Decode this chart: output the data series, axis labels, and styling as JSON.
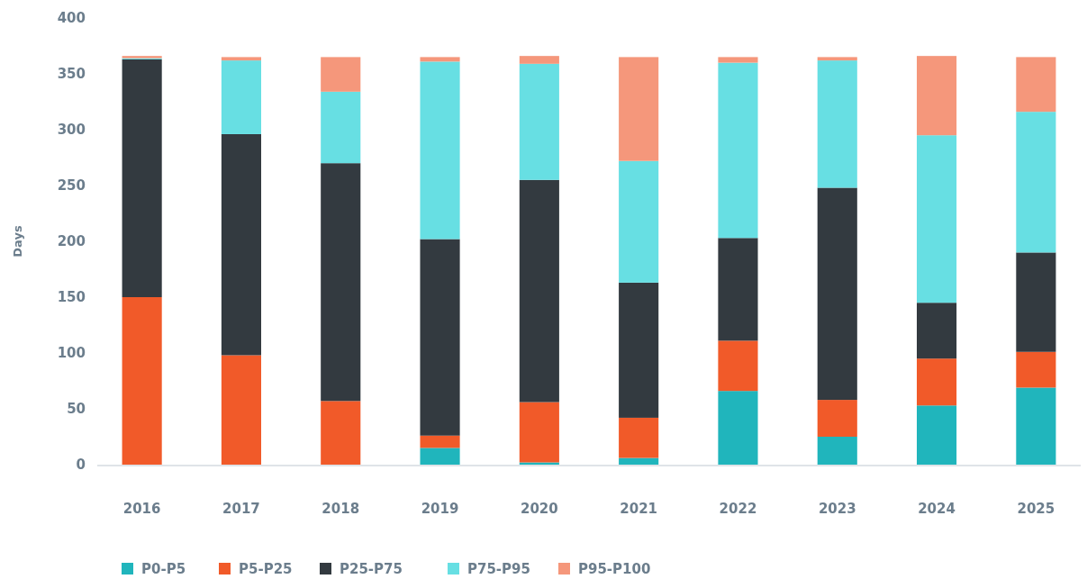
{
  "chart_data": {
    "type": "bar",
    "stacked": true,
    "ylabel": "Days",
    "categories": [
      "2016",
      "2017",
      "2018",
      "2019",
      "2020",
      "2021",
      "2022",
      "2023",
      "2024",
      "2025"
    ],
    "series": [
      {
        "name": "P0-P5",
        "color": "#20b5bc",
        "values": [
          0,
          0,
          0,
          15,
          2,
          6,
          66,
          25,
          53,
          69
        ]
      },
      {
        "name": "P5-P25",
        "color": "#f15a29",
        "values": [
          150,
          98,
          57,
          11,
          54,
          36,
          45,
          33,
          42,
          32
        ]
      },
      {
        "name": "P25-P75",
        "color": "#333a40",
        "values": [
          213,
          198,
          213,
          176,
          199,
          121,
          92,
          190,
          50,
          89
        ]
      },
      {
        "name": "P75-P95",
        "color": "#67dfe3",
        "values": [
          1,
          66,
          64,
          159,
          104,
          109,
          157,
          114,
          150,
          126
        ]
      },
      {
        "name": "P95-P100",
        "color": "#f5977b",
        "values": [
          2,
          3,
          31,
          4,
          7,
          93,
          5,
          3,
          71,
          49
        ]
      }
    ],
    "ylim": [
      0,
      400
    ],
    "yticks": [
      0,
      50,
      100,
      150,
      200,
      250,
      300,
      350,
      400
    ],
    "grid": false,
    "legend": "bottom"
  }
}
